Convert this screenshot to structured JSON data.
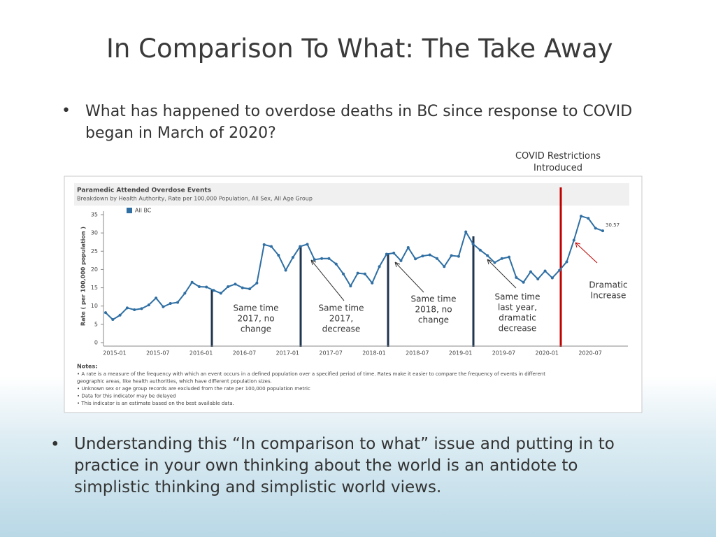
{
  "slide_title": "In Comparison To What: The Take Away",
  "bullet_1": "What has happened to overdose deaths in BC since response to COVID began in March of 2020?",
  "bullet_2": "Understanding this “In comparison to what” issue and putting in to practice in your own thinking about the world is an antidote to simplistic thinking and simplistic world views.",
  "covid_label": [
    "COVID Restrictions",
    "Introduced"
  ],
  "chart_data": {
    "type": "line",
    "title": "Paramedic Attended Overdose Events",
    "subtitle": "Breakdown by Health Authority, Rate per 100,000 Population,  All Sex,  All Age Group",
    "ylabel": "Rate ( per 100,000 population )",
    "categories": [
      "2015-01",
      null,
      null,
      null,
      null,
      null,
      "2015-07",
      null,
      null,
      null,
      null,
      null,
      "2016-01",
      null,
      null,
      null,
      null,
      null,
      "2016-07",
      null,
      null,
      null,
      null,
      null,
      "2017-01",
      null,
      null,
      null,
      null,
      null,
      "2017-07",
      null,
      null,
      null,
      null,
      null,
      "2018-01",
      null,
      null,
      null,
      null,
      null,
      "2018-07",
      null,
      null,
      null,
      null,
      null,
      "2019-01",
      null,
      null,
      null,
      null,
      null,
      "2019-07",
      null,
      null,
      null,
      null,
      null,
      "2020-01",
      null,
      null,
      null,
      null,
      null,
      "2020-07",
      null,
      null,
      null
    ],
    "series": [
      {
        "name": "All BC",
        "color": "#2f6fa3",
        "values": [
          8.2,
          6.3,
          7.5,
          9.5,
          9.0,
          9.3,
          10.3,
          12.2,
          9.8,
          10.7,
          11.0,
          13.5,
          16.5,
          15.3,
          15.2,
          14.3,
          13.5,
          15.3,
          16.0,
          15.0,
          14.7,
          16.3,
          26.8,
          26.3,
          23.9,
          19.8,
          23.3,
          26.3,
          26.9,
          22.7,
          23.0,
          23.0,
          21.5,
          18.8,
          15.5,
          19.0,
          18.8,
          16.3,
          20.8,
          24.2,
          24.5,
          22.4,
          26.0,
          22.9,
          23.7,
          24.0,
          23.0,
          20.8,
          23.8,
          23.6,
          30.3,
          27.0,
          25.3,
          23.8,
          21.9,
          23.0,
          23.4,
          17.8,
          16.5,
          19.4,
          17.4,
          19.6,
          17.7,
          19.8,
          22.1,
          28.0,
          34.6,
          34.0,
          31.3,
          30.57
        ]
      }
    ],
    "ylim": [
      0,
      35
    ],
    "yticks": [
      0,
      5,
      10,
      15,
      20,
      25,
      30,
      35
    ],
    "annotations": [
      [
        "Same time",
        "2017, no",
        "change"
      ],
      [
        "Same time",
        "2017,",
        "decrease"
      ],
      [
        "Same time",
        "2018, no",
        "change"
      ],
      [
        "Same time",
        "last year,",
        "dramatic",
        "decrease"
      ],
      [
        "Dramatic",
        "Increase"
      ]
    ],
    "notes_title": "Notes:",
    "notes": [
      "• A rate  is a measure of the frequency with which an event occurs in a defined population over a specified period of time. Rates make it easier to compare the frequency of events in different",
      "geographic areas, like health authorities, which have different population sizes.",
      "• Unknown sex or age group records are excluded from the rate per 100,000 population metric",
      "• Data for this indicator may be delayed",
      "• This indicator is an estimate based on the best available data."
    ]
  }
}
